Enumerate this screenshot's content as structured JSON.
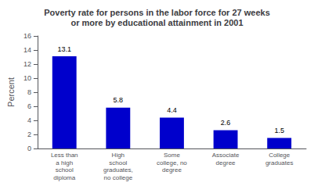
{
  "chart_data": {
    "type": "bar",
    "title": "Poverty rate for persons in the labor force for 27 weeks\nor more by educational attainment in 2001",
    "categories": [
      "Less than\na high\nschool\ndiploma",
      "High\nschool\ngraduates,\nno college",
      "Some\ncollege, no\ndegree",
      "Associate\ndegree",
      "College\ngraduates"
    ],
    "values": [
      13.1,
      5.8,
      4.4,
      2.6,
      1.5
    ],
    "color": "#0000cc",
    "ylabel": "Percent",
    "ylim": [
      0,
      16
    ],
    "yticks": [
      0,
      2,
      4,
      6,
      8,
      10,
      12,
      14,
      16
    ],
    "data_labels": true,
    "grid": false
  }
}
